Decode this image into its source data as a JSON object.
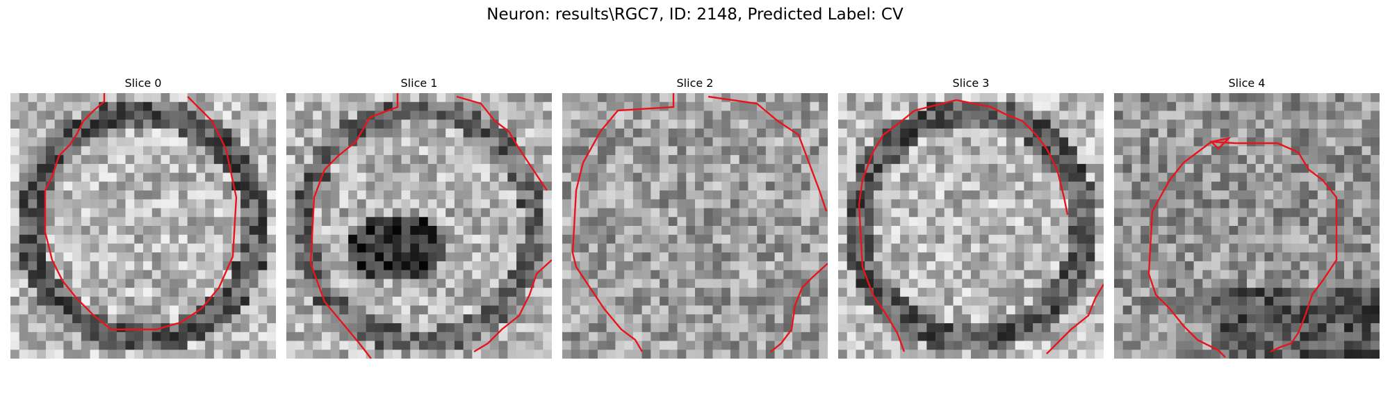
{
  "figure": {
    "title": "Neuron: results\\RGC7, ID: 2148, Predicted Label: CV"
  },
  "contour_color": "#e8141c",
  "panels": [
    {
      "title": "Slice 0",
      "style": "ring"
    },
    {
      "title": "Slice 1",
      "style": "ring-dark-center"
    },
    {
      "title": "Slice 2",
      "style": "uniform"
    },
    {
      "title": "Slice 3",
      "style": "ring"
    },
    {
      "title": "Slice 4",
      "style": "noisy-dark-bottom"
    }
  ]
}
